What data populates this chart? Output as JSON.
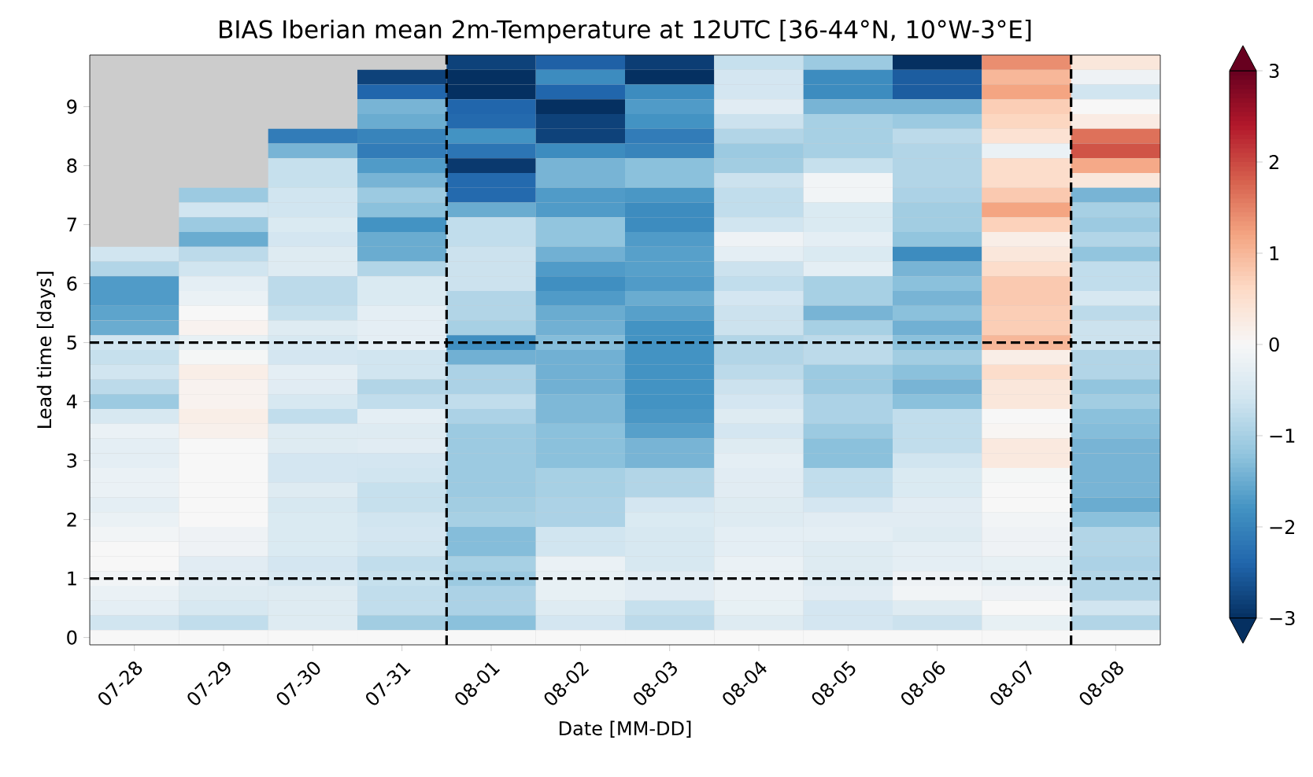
{
  "chart_data": {
    "type": "heatmap",
    "title": "BIAS Iberian mean 2m-Temperature at 12UTC [36-44°N, 10°W-3°E]",
    "xlabel": "Date [MM-DD]",
    "ylabel": "Lead time [days]",
    "categories": [
      "07-28",
      "07-29",
      "07-30",
      "07-31",
      "08-01",
      "08-02",
      "08-03",
      "08-04",
      "08-05",
      "08-06",
      "08-07",
      "08-08"
    ],
    "ylim": [
      -0.125,
      9.875
    ],
    "yticks": [
      0,
      1,
      2,
      3,
      4,
      5,
      6,
      7,
      8,
      9
    ],
    "clim": [
      -3,
      3
    ],
    "cticks": [
      {
        "value": -3,
        "label": "−3"
      },
      {
        "value": -2,
        "label": "−2"
      },
      {
        "value": -1,
        "label": "−1"
      },
      0,
      1,
      2,
      3
    ],
    "ref_lines": [
      {
        "axis": "y",
        "value": 5,
        "line_style": "dashed"
      },
      {
        "axis": "y",
        "value": 1,
        "line_style": "dashed"
      }
    ],
    "cells": [
      [
        null,
        null,
        null,
        null,
        -2.8,
        -2.45,
        -2.85,
        -0.7,
        -1.1,
        -3.0,
        1.4,
        0.35
      ],
      [
        null,
        null,
        null,
        -2.8,
        -3.0,
        -1.9,
        -3.0,
        -0.55,
        -1.9,
        -2.5,
        1.0,
        -0.15
      ],
      [
        null,
        null,
        null,
        -2.4,
        -3.0,
        -2.4,
        -1.9,
        -0.55,
        -1.9,
        -2.5,
        1.2,
        -0.6
      ],
      [
        null,
        null,
        null,
        -1.4,
        -2.4,
        -3.0,
        -1.7,
        -0.35,
        -1.4,
        -1.4,
        0.75,
        0
      ],
      [
        null,
        null,
        null,
        -1.5,
        -2.35,
        -2.8,
        -1.8,
        -0.65,
        -1.0,
        -1.1,
        0.65,
        0.25
      ],
      [
        null,
        null,
        -2.1,
        -2.0,
        -1.8,
        -2.8,
        -2.1,
        -0.9,
        -1.0,
        -0.8,
        0.45,
        1.65
      ],
      [
        null,
        null,
        -1.4,
        -2.1,
        -2.2,
        -1.9,
        -2.0,
        -1.1,
        -1.0,
        -0.9,
        -0.2,
        1.9
      ],
      [
        null,
        null,
        -0.7,
        -1.7,
        -2.9,
        -1.4,
        -1.25,
        -1.05,
        -0.7,
        -0.9,
        0.55,
        1.15
      ],
      [
        null,
        null,
        -0.7,
        -1.4,
        -2.35,
        -1.4,
        -1.25,
        -0.65,
        -0.1,
        -0.9,
        0.55,
        0.35
      ],
      [
        null,
        -1.1,
        -0.6,
        -1.1,
        -2.35,
        -1.7,
        -1.75,
        -0.75,
        -0.1,
        -0.95,
        0.8,
        -1.4
      ],
      [
        null,
        -0.6,
        -0.6,
        -1.25,
        -1.5,
        -1.7,
        -1.9,
        -0.75,
        -0.45,
        -1.05,
        1.2,
        -1.0
      ],
      [
        null,
        -1.1,
        -0.45,
        -1.8,
        -0.75,
        -1.2,
        -1.9,
        -0.6,
        -0.45,
        -1.05,
        0.7,
        -1.1
      ],
      [
        null,
        -1.5,
        -0.55,
        -1.5,
        -0.75,
        -1.2,
        -1.7,
        -0.15,
        -0.3,
        -1.2,
        0.2,
        -0.9
      ],
      [
        -0.6,
        -0.8,
        -0.4,
        -1.5,
        -0.65,
        -1.45,
        -1.65,
        -0.3,
        -0.45,
        -1.9,
        0.35,
        -1.2
      ],
      [
        -0.9,
        -0.6,
        -0.4,
        -0.9,
        -0.65,
        -1.7,
        -1.65,
        -0.65,
        -0.3,
        -1.4,
        0.55,
        -0.75
      ],
      [
        -1.7,
        -0.3,
        -0.8,
        -0.45,
        -0.65,
        -1.85,
        -1.7,
        -0.75,
        -1.0,
        -1.25,
        0.8,
        -0.75
      ],
      [
        -1.7,
        -0.2,
        -0.8,
        -0.45,
        -0.9,
        -1.7,
        -1.5,
        -0.55,
        -1.0,
        -1.4,
        0.8,
        -0.5
      ],
      [
        -1.6,
        0,
        -0.7,
        -0.3,
        -0.9,
        -1.5,
        -1.65,
        -0.65,
        -1.4,
        -1.25,
        0.75,
        -0.8
      ],
      [
        -1.5,
        0.1,
        -0.4,
        -0.3,
        -1.0,
        -1.45,
        -1.8,
        -0.65,
        -1.0,
        -1.45,
        0.75,
        -0.65
      ],
      [
        -0.6,
        -0.25,
        -0.5,
        -0.3,
        -1.85,
        -1.3,
        -1.8,
        -0.9,
        -0.8,
        -1.25,
        1.0,
        -0.65
      ],
      [
        -0.7,
        -0.05,
        -0.55,
        -0.6,
        -1.45,
        -1.45,
        -1.8,
        -0.9,
        -0.8,
        -1.05,
        0.2,
        -0.9
      ],
      [
        -0.6,
        0.2,
        -0.3,
        -0.6,
        -0.95,
        -1.45,
        -1.8,
        -0.8,
        -1.1,
        -1.25,
        0.55,
        -0.9
      ],
      [
        -0.8,
        0.1,
        -0.35,
        -0.9,
        -0.95,
        -1.45,
        -1.8,
        -0.65,
        -1.1,
        -1.4,
        0.35,
        -1.2
      ],
      [
        -1.1,
        0.1,
        -0.5,
        -0.75,
        -0.75,
        -1.35,
        -1.8,
        -0.55,
        -0.95,
        -1.25,
        0.35,
        -1.05
      ],
      [
        -0.5,
        0.2,
        -0.75,
        -0.3,
        -0.95,
        -1.35,
        -1.75,
        -0.4,
        -0.95,
        -0.75,
        0,
        -1.25
      ],
      [
        -0.2,
        0.15,
        -0.4,
        -0.4,
        -1.1,
        -1.25,
        -1.65,
        -0.55,
        -1.1,
        -0.75,
        0.05,
        -1.3
      ],
      [
        -0.3,
        0,
        -0.4,
        -0.35,
        -1.1,
        -1.25,
        -1.4,
        -0.4,
        -1.25,
        -0.75,
        0.3,
        -1.4
      ],
      [
        -0.3,
        0,
        -0.55,
        -0.55,
        -1.1,
        -1.25,
        -1.4,
        -0.3,
        -1.25,
        -0.6,
        0.3,
        -1.4
      ],
      [
        -0.2,
        0,
        -0.55,
        -0.6,
        -1.1,
        -1.0,
        -0.9,
        -0.35,
        -0.75,
        -0.45,
        -0.05,
        -1.4
      ],
      [
        -0.2,
        0,
        -0.4,
        -0.7,
        -1.1,
        -1.0,
        -0.9,
        -0.35,
        -0.75,
        -0.45,
        0,
        -1.4
      ],
      [
        -0.3,
        0,
        -0.5,
        -0.7,
        -1.05,
        -0.95,
        -0.55,
        -0.4,
        -0.55,
        -0.35,
        0,
        -1.5
      ],
      [
        -0.2,
        0,
        -0.45,
        -0.6,
        -1.0,
        -0.95,
        -0.45,
        -0.4,
        -0.35,
        -0.35,
        -0.1,
        -1.25
      ],
      [
        -0.1,
        -0.15,
        -0.45,
        -0.55,
        -1.3,
        -0.6,
        -0.5,
        -0.3,
        -0.3,
        -0.4,
        -0.15,
        -0.9
      ],
      [
        0,
        -0.15,
        -0.45,
        -0.6,
        -1.3,
        -0.6,
        -0.5,
        -0.3,
        -0.4,
        -0.3,
        -0.15,
        -0.9
      ],
      [
        0,
        -0.35,
        -0.55,
        -0.75,
        -1.0,
        -0.2,
        -0.5,
        -0.2,
        -0.4,
        -0.3,
        -0.25,
        -0.95
      ],
      [
        -0.1,
        -0.35,
        -0.5,
        -0.7,
        -1.1,
        -0.25,
        -0.35,
        -0.2,
        -0.4,
        -0.15,
        -0.25,
        -0.9
      ],
      [
        -0.2,
        -0.4,
        -0.4,
        -0.75,
        -0.95,
        -0.25,
        -0.35,
        -0.2,
        -0.35,
        -0.1,
        -0.15,
        -0.9
      ],
      [
        -0.3,
        -0.5,
        -0.4,
        -0.75,
        -0.95,
        -0.4,
        -0.7,
        -0.25,
        -0.55,
        -0.4,
        0,
        -0.6
      ],
      [
        -0.6,
        -0.75,
        -0.4,
        -1.05,
        -1.25,
        -0.55,
        -0.8,
        -0.4,
        -0.55,
        -0.65,
        -0.25,
        -0.9
      ],
      [
        0,
        0,
        0,
        0,
        0,
        0,
        0,
        0,
        0,
        0,
        0,
        0
      ]
    ]
  }
}
